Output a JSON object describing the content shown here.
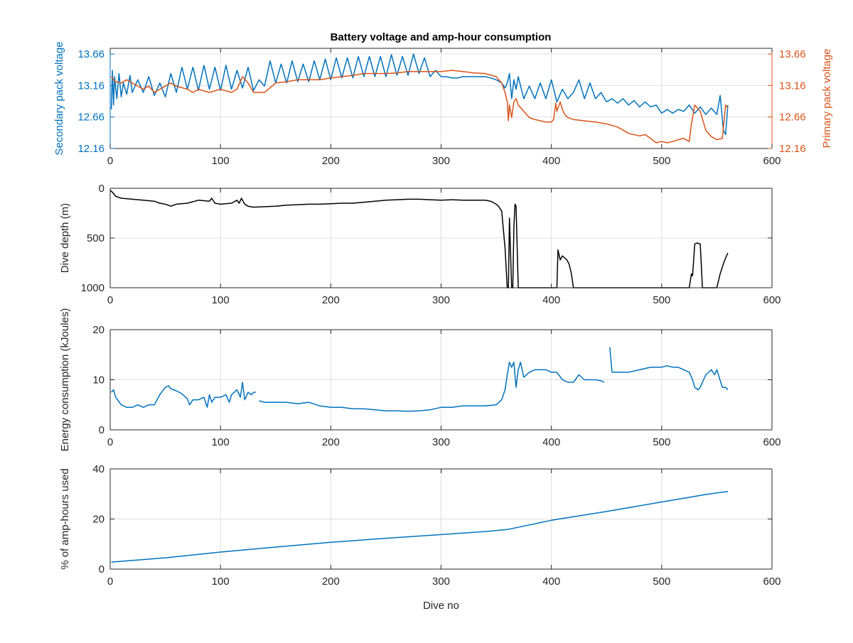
{
  "figure": {
    "title": "Battery voltage and amp-hour consumption"
  },
  "colors": {
    "blue": "#0072bd",
    "orange": "#d95319",
    "black": "#000000",
    "grid": "#dfdfdf",
    "axis": "#262626"
  },
  "chart_data": [
    {
      "type": "line",
      "title": "Battery voltage and amp-hour consumption",
      "xlabel": "",
      "ylabel": "Secondary pack voltage",
      "ylabel_right": "Primary pack voltage",
      "xlim": [
        0,
        600
      ],
      "ylim": [
        12.16,
        13.75
      ],
      "ylim_right": [
        12.16,
        13.75
      ],
      "xticks": [
        0,
        100,
        200,
        300,
        400,
        500,
        600
      ],
      "yticks": [
        12.16,
        12.66,
        13.16,
        13.66
      ],
      "yticks_right": [
        12.16,
        12.66,
        13.16,
        13.66
      ],
      "grid": true,
      "series": [
        {
          "axis": "left",
          "color": "#0072bd",
          "x": [
            1,
            2,
            3,
            4,
            6,
            8,
            10,
            12,
            15,
            18,
            20,
            25,
            30,
            35,
            40,
            45,
            50,
            55,
            60,
            65,
            70,
            75,
            80,
            85,
            90,
            95,
            100,
            105,
            110,
            115,
            120,
            125,
            130,
            135,
            140,
            145,
            150,
            155,
            160,
            165,
            170,
            175,
            180,
            185,
            190,
            195,
            200,
            205,
            210,
            215,
            220,
            225,
            230,
            235,
            240,
            245,
            250,
            255,
            260,
            265,
            270,
            275,
            280,
            285,
            290,
            295,
            300,
            305,
            310,
            315,
            320,
            325,
            330,
            335,
            340,
            345,
            350,
            355,
            358,
            360,
            362,
            364,
            366,
            368,
            370,
            375,
            380,
            385,
            390,
            395,
            400,
            405,
            410,
            415,
            420,
            425,
            430,
            435,
            440,
            445,
            450,
            455,
            460,
            465,
            470,
            475,
            480,
            485,
            490,
            495,
            500,
            505,
            510,
            515,
            520,
            525,
            530,
            535,
            540,
            545,
            550,
            553,
            556,
            558,
            560
          ],
          "values": [
            12.78,
            13.4,
            12.85,
            13.3,
            12.95,
            13.35,
            12.98,
            13.2,
            13.02,
            13.32,
            13.05,
            13.25,
            13.05,
            13.3,
            13.0,
            13.2,
            12.98,
            13.35,
            13.05,
            13.45,
            13.1,
            13.45,
            13.08,
            13.48,
            13.1,
            13.45,
            13.08,
            13.48,
            13.1,
            13.4,
            13.12,
            13.45,
            13.08,
            13.25,
            13.15,
            13.55,
            13.2,
            13.5,
            13.2,
            13.55,
            13.22,
            13.5,
            13.22,
            13.55,
            13.25,
            13.58,
            13.25,
            13.6,
            13.28,
            13.6,
            13.28,
            13.62,
            13.3,
            13.62,
            13.3,
            13.62,
            13.3,
            13.65,
            13.32,
            13.62,
            13.32,
            13.66,
            13.35,
            13.6,
            13.3,
            13.4,
            13.3,
            13.3,
            13.28,
            13.28,
            13.3,
            13.3,
            13.3,
            13.3,
            13.3,
            13.28,
            13.25,
            13.2,
            13.12,
            13.2,
            13.35,
            12.95,
            13.25,
            13.1,
            13.3,
            12.95,
            13.15,
            12.95,
            13.2,
            12.95,
            13.25,
            12.9,
            13.1,
            12.95,
            13.05,
            13.25,
            12.95,
            13.2,
            12.95,
            13.05,
            12.9,
            12.95,
            12.88,
            12.95,
            12.85,
            12.92,
            12.82,
            12.9,
            12.82,
            12.85,
            12.72,
            12.78,
            12.72,
            12.78,
            12.75,
            12.85,
            12.72,
            12.82,
            12.7,
            12.8,
            12.7,
            13.0,
            12.45,
            12.38,
            12.85
          ]
        },
        {
          "axis": "right",
          "color": "#d95319",
          "x": [
            1,
            3,
            5,
            10,
            15,
            20,
            25,
            30,
            35,
            40,
            45,
            50,
            55,
            60,
            70,
            75,
            80,
            90,
            100,
            110,
            115,
            120,
            125,
            130,
            140,
            150,
            160,
            170,
            180,
            190,
            200,
            210,
            220,
            230,
            240,
            250,
            260,
            270,
            280,
            290,
            300,
            310,
            320,
            330,
            340,
            350,
            355,
            358,
            360,
            361,
            362,
            364,
            366,
            368,
            370,
            375,
            380,
            385,
            390,
            395,
            400,
            402,
            404,
            405,
            408,
            410,
            412,
            415,
            420,
            430,
            440,
            450,
            460,
            470,
            480,
            485,
            490,
            495,
            500,
            505,
            510,
            515,
            520,
            525,
            527,
            530,
            535,
            540,
            545,
            550,
            555,
            558,
            560
          ],
          "values": [
            13.3,
            13.25,
            13.22,
            13.2,
            13.25,
            13.2,
            13.15,
            13.1,
            13.15,
            13.05,
            13.1,
            13.15,
            13.2,
            13.15,
            13.1,
            13.05,
            13.1,
            13.05,
            13.1,
            13.05,
            13.1,
            13.3,
            13.2,
            13.05,
            13.05,
            13.2,
            13.22,
            13.25,
            13.25,
            13.25,
            13.28,
            13.3,
            13.32,
            13.35,
            13.35,
            13.35,
            13.36,
            13.38,
            13.38,
            13.38,
            13.38,
            13.4,
            13.38,
            13.36,
            13.35,
            13.3,
            13.2,
            13.05,
            12.9,
            12.6,
            12.85,
            12.65,
            12.9,
            12.95,
            12.85,
            12.75,
            12.65,
            12.62,
            12.6,
            12.58,
            12.58,
            12.62,
            12.88,
            12.75,
            12.9,
            12.78,
            12.7,
            12.65,
            12.62,
            12.6,
            12.58,
            12.55,
            12.5,
            12.4,
            12.36,
            12.38,
            12.32,
            12.25,
            12.27,
            12.25,
            12.27,
            12.3,
            12.32,
            12.27,
            12.55,
            12.85,
            12.75,
            12.45,
            12.35,
            12.3,
            12.32,
            12.85,
            12.8
          ]
        }
      ]
    },
    {
      "type": "line",
      "xlabel": "",
      "ylabel": "Dive depth (m)",
      "xlim": [
        0,
        600
      ],
      "ylim": [
        1000,
        0
      ],
      "reversed_y": true,
      "xticks": [
        0,
        100,
        200,
        300,
        400,
        500,
        600
      ],
      "yticks": [
        0,
        500,
        1000
      ],
      "grid": true,
      "series": [
        {
          "color": "#000000",
          "x": [
            0,
            2,
            5,
            10,
            20,
            30,
            40,
            45,
            50,
            55,
            60,
            70,
            80,
            90,
            92,
            95,
            100,
            110,
            115,
            117,
            119,
            122,
            125,
            130,
            140,
            150,
            160,
            170,
            180,
            190,
            200,
            210,
            220,
            230,
            240,
            250,
            260,
            270,
            280,
            290,
            300,
            310,
            320,
            330,
            340,
            345,
            350,
            352,
            355,
            358,
            360,
            361,
            362,
            364,
            365,
            366,
            367,
            368,
            370,
            372,
            375,
            380,
            390,
            400,
            405,
            406,
            408,
            410,
            412,
            414,
            416,
            418,
            420,
            430,
            450,
            470,
            490,
            510,
            520,
            525,
            527,
            528,
            530,
            532,
            535,
            537,
            540,
            545,
            550,
            553,
            556,
            558,
            560
          ],
          "values": [
            20,
            40,
            80,
            100,
            110,
            120,
            130,
            150,
            160,
            180,
            160,
            150,
            120,
            130,
            100,
            150,
            160,
            150,
            120,
            150,
            100,
            160,
            180,
            190,
            185,
            180,
            170,
            165,
            160,
            160,
            155,
            150,
            150,
            140,
            130,
            120,
            115,
            110,
            110,
            115,
            120,
            115,
            120,
            120,
            120,
            130,
            160,
            180,
            230,
            600,
            1000,
            1000,
            300,
            1000,
            1000,
            400,
            160,
            180,
            1000,
            1000,
            1000,
            1000,
            1000,
            1000,
            1000,
            620,
            720,
            680,
            700,
            720,
            760,
            850,
            1000,
            1000,
            1000,
            1000,
            1000,
            1000,
            1000,
            1000,
            860,
            880,
            560,
            550,
            560,
            1000,
            1000,
            1000,
            1000,
            860,
            760,
            700,
            650
          ]
        }
      ]
    },
    {
      "type": "line",
      "xlabel": "",
      "ylabel": "Energy consumption (kJoules)",
      "xlim": [
        0,
        600
      ],
      "ylim": [
        0,
        20
      ],
      "xticks": [
        0,
        100,
        200,
        300,
        400,
        500,
        600
      ],
      "yticks": [
        0,
        10,
        20
      ],
      "grid": true,
      "series": [
        {
          "color": "#0072bd",
          "x": [
            1,
            3,
            5,
            10,
            15,
            20,
            25,
            30,
            35,
            40,
            45,
            50,
            53,
            55,
            60,
            65,
            70,
            72,
            75,
            80,
            85,
            88,
            90,
            92,
            95,
            100,
            105,
            108,
            110,
            115,
            118,
            120,
            122,
            125,
            128,
            130,
            132,
            null,
            135,
            140,
            150,
            160,
            170,
            180,
            190,
            200,
            210,
            220,
            230,
            240,
            250,
            260,
            270,
            280,
            290,
            300,
            310,
            320,
            330,
            340,
            350,
            355,
            358,
            360,
            362,
            364,
            366,
            368,
            370,
            372,
            375,
            380,
            385,
            390,
            395,
            400,
            405,
            410,
            415,
            420,
            425,
            430,
            440,
            445,
            448,
            null,
            453,
            455,
            460,
            470,
            480,
            490,
            500,
            505,
            510,
            515,
            520,
            525,
            528,
            530,
            533,
            535,
            540,
            545,
            548,
            550,
            555,
            558,
            560
          ],
          "values": [
            7.5,
            8.0,
            6.5,
            5.0,
            4.5,
            4.5,
            5.0,
            4.5,
            5.0,
            5.0,
            7.0,
            8.5,
            8.8,
            8.2,
            7.8,
            7.2,
            6.2,
            5.0,
            6.0,
            6.0,
            6.5,
            4.5,
            7.0,
            5.5,
            6.5,
            6.5,
            7.0,
            5.5,
            7.0,
            8.0,
            6.5,
            9.5,
            6.0,
            7.5,
            7.0,
            7.5,
            7.5,
            null,
            5.8,
            5.5,
            5.5,
            5.5,
            5.2,
            5.5,
            4.8,
            4.5,
            4.5,
            4.2,
            4.2,
            4.0,
            3.8,
            3.8,
            3.7,
            3.8,
            4.0,
            4.5,
            4.5,
            4.8,
            4.8,
            4.8,
            5.0,
            6.0,
            8.0,
            11.0,
            13.5,
            12.5,
            13.5,
            8.5,
            12.0,
            13.5,
            10.5,
            11.5,
            12.0,
            12.0,
            12.0,
            11.5,
            11.5,
            10.0,
            9.5,
            9.5,
            11.0,
            10.0,
            10.0,
            9.8,
            9.5,
            null,
            16.5,
            11.5,
            11.5,
            11.5,
            12.0,
            12.5,
            12.5,
            12.8,
            12.5,
            12.5,
            12.0,
            11.5,
            10.0,
            8.5,
            8.0,
            8.5,
            11.0,
            12.0,
            11.0,
            12.0,
            8.5,
            8.5,
            8.0
          ]
        }
      ]
    },
    {
      "type": "line",
      "xlabel": "Dive no",
      "ylabel": "% of amp-hours used",
      "xlim": [
        0,
        600
      ],
      "ylim": [
        0,
        40
      ],
      "xticks": [
        0,
        100,
        200,
        300,
        400,
        500,
        600
      ],
      "yticks": [
        0,
        20,
        40
      ],
      "grid": true,
      "series": [
        {
          "color": "#0072bd",
          "x": [
            1,
            50,
            100,
            150,
            200,
            250,
            300,
            340,
            360,
            400,
            450,
            500,
            540,
            560
          ],
          "values": [
            2.8,
            4.5,
            6.8,
            8.8,
            10.7,
            12.3,
            13.8,
            15.0,
            15.8,
            19.5,
            23.0,
            26.8,
            29.8,
            31.0
          ]
        }
      ]
    }
  ]
}
